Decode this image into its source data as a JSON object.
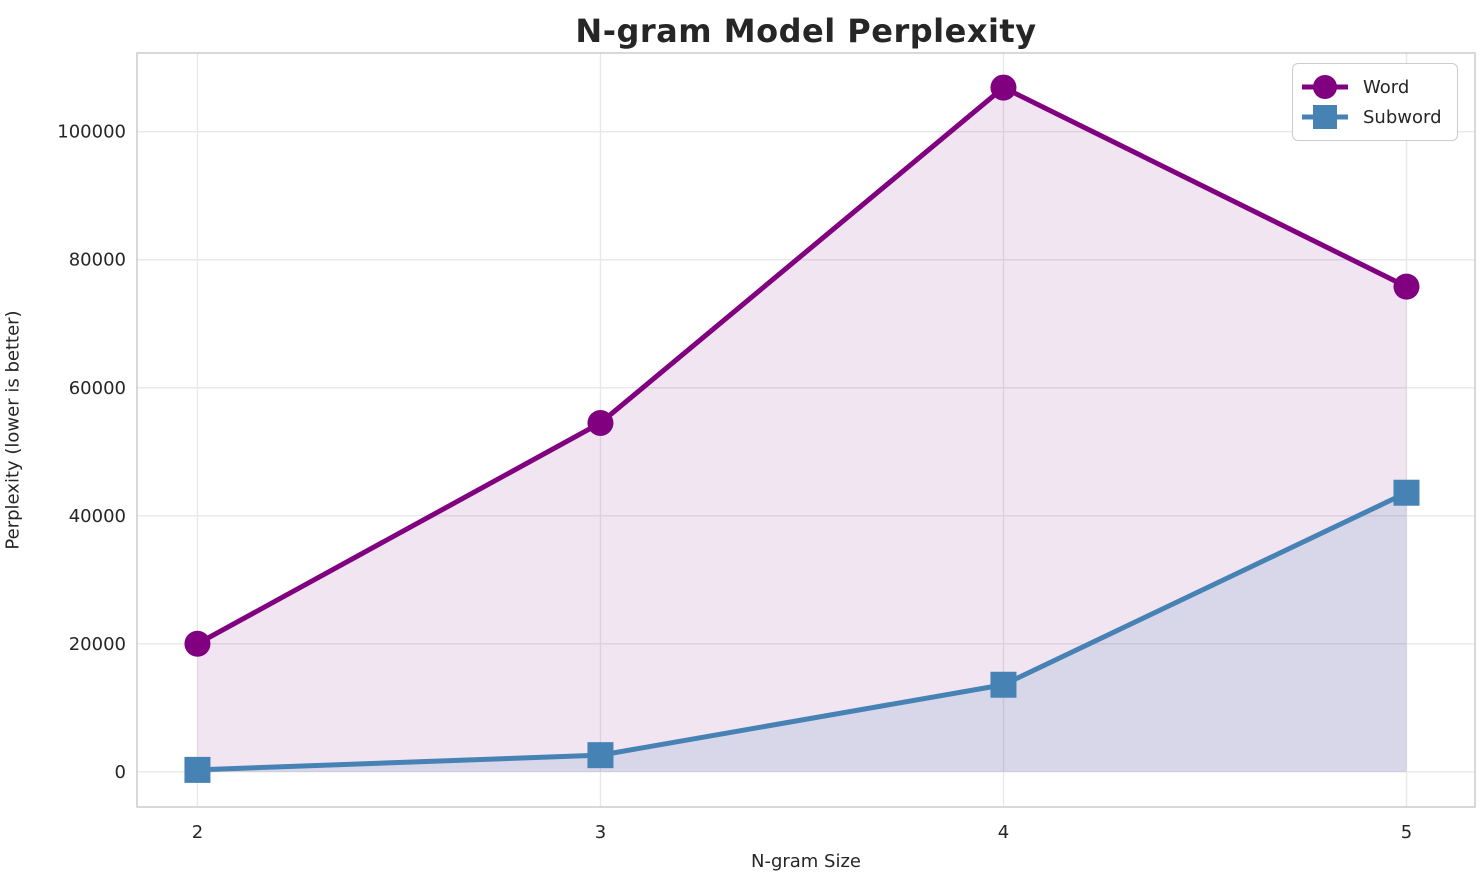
{
  "figure": {
    "background_color": "#ffffff",
    "text_color": "#262626",
    "grid_color": "#e8e8e8",
    "spine_color": "#cccccc"
  },
  "chart_data": {
    "type": "line",
    "title": "N-gram Model Perplexity",
    "xlabel": "N-gram Size",
    "ylabel": "Perplexity (lower is better)",
    "x": [
      2,
      3,
      4,
      5
    ],
    "series": [
      {
        "name": "Word",
        "values": [
          20000,
          54500,
          106900,
          75800
        ],
        "color": "#800080",
        "marker": "circle",
        "fill_opacity": 0.1
      },
      {
        "name": "Subword",
        "values": [
          300,
          2600,
          13600,
          43600
        ],
        "color": "#4682b4",
        "marker": "square",
        "fill_opacity": 0.15
      }
    ],
    "xticks": [
      2,
      3,
      4,
      5
    ],
    "yticks": [
      0,
      20000,
      40000,
      60000,
      80000,
      100000
    ],
    "xlim": [
      1.85,
      5.17
    ],
    "ylim": [
      -5500,
      112300
    ],
    "grid": true,
    "area_fill_to_zero": true,
    "legend_position": "upper right"
  }
}
